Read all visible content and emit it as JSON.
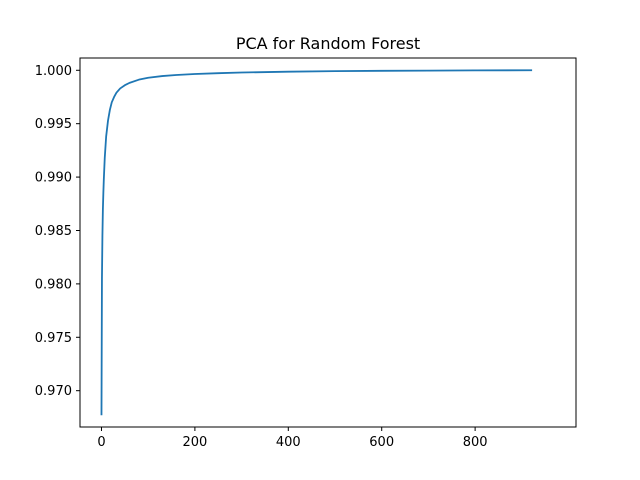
{
  "chart_data": {
    "type": "line",
    "title": "PCA for Random Forest",
    "xlabel": "",
    "ylabel": "",
    "xlim": [
      -46,
      1016
    ],
    "ylim": [
      0.9666,
      1.00115
    ],
    "xticks": [
      0,
      200,
      400,
      600,
      800
    ],
    "xtick_labels": [
      "0",
      "200",
      "400",
      "600",
      "800"
    ],
    "yticks": [
      0.97,
      0.975,
      0.98,
      0.985,
      0.99,
      0.995,
      1.0
    ],
    "ytick_labels": [
      "0.970",
      "0.975",
      "0.980",
      "0.985",
      "0.990",
      "0.995",
      "1.000"
    ],
    "grid": false,
    "series": [
      {
        "color": "#1f77b4",
        "points": [
          [
            0,
            0.9677
          ],
          [
            1,
            0.9805
          ],
          [
            2,
            0.9845
          ],
          [
            3,
            0.987
          ],
          [
            4,
            0.9885
          ],
          [
            5,
            0.9898
          ],
          [
            7,
            0.9918
          ],
          [
            10,
            0.9938
          ],
          [
            14,
            0.9953
          ],
          [
            18,
            0.9963
          ],
          [
            22,
            0.997
          ],
          [
            27,
            0.9975
          ],
          [
            32,
            0.9979
          ],
          [
            40,
            0.9983
          ],
          [
            50,
            0.9986
          ],
          [
            60,
            0.99882
          ],
          [
            80,
            0.99912
          ],
          [
            100,
            0.9993
          ],
          [
            130,
            0.99946
          ],
          [
            160,
            0.99956
          ],
          [
            200,
            0.99965
          ],
          [
            250,
            0.99973
          ],
          [
            300,
            0.99979
          ],
          [
            400,
            0.99987
          ],
          [
            500,
            0.99992
          ],
          [
            600,
            0.99995
          ],
          [
            700,
            0.99997
          ],
          [
            800,
            0.99999
          ],
          [
            922,
            1.0
          ]
        ]
      }
    ]
  }
}
